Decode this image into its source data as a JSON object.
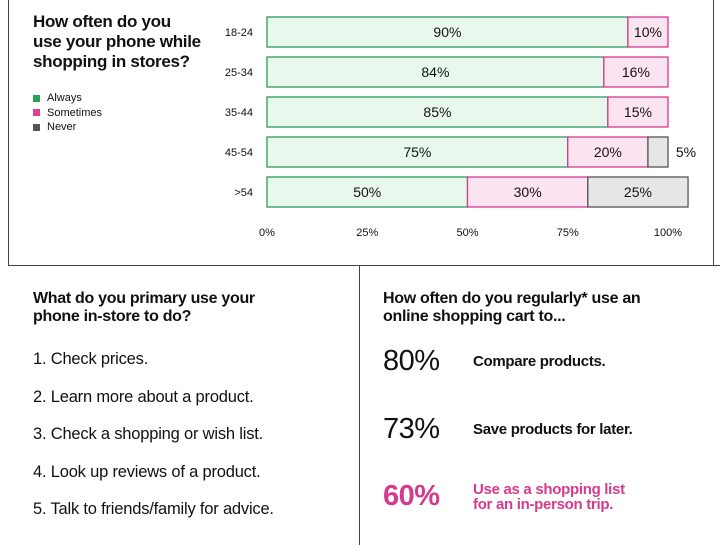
{
  "chart_data": {
    "type": "bar",
    "orientation": "horizontal",
    "stacked": true,
    "title": "How often do you use your phone while shopping in stores?",
    "categories": [
      "18-24",
      "25-34",
      "35-44",
      "45-54",
      ">54"
    ],
    "series": [
      {
        "name": "Always",
        "values": [
          90,
          84,
          85,
          75,
          50
        ],
        "labels": [
          "90%",
          "84%",
          "85%",
          "75%",
          "50%"
        ],
        "fill": "#e8f8ec",
        "stroke": "#2e9a5c",
        "swatch": "#2ea055"
      },
      {
        "name": "Sometimes",
        "values": [
          10,
          16,
          15,
          20,
          30
        ],
        "labels": [
          "10%",
          "16%",
          "15%",
          "20%",
          "30%"
        ],
        "fill": "#fbe3ef",
        "stroke": "#d63a8e",
        "swatch": "#e0408f"
      },
      {
        "name": "Never",
        "values": [
          0,
          0,
          0,
          5,
          25
        ],
        "labels": [
          "",
          "",
          "",
          "5%",
          "25%"
        ],
        "fill": "#e6e6e6",
        "stroke": "#555555",
        "swatch": "#555555"
      }
    ],
    "xticks": [
      "0%",
      "25%",
      "50%",
      "75%",
      "100%"
    ],
    "xlim": [
      0,
      100
    ],
    "legend_position": "left"
  },
  "usage": {
    "title": "What do you primary use your phone in-store to do?",
    "items": [
      "1.  Check prices.",
      "2. Learn more about a product.",
      "3. Check a shopping or wish list.",
      "4. Look up reviews of a product.",
      "5. Talk to friends/family for advice."
    ]
  },
  "cart": {
    "title": "How often do you regularly* use an online shopping cart to...",
    "stats": [
      {
        "pct": "80%",
        "text": "Compare products.",
        "highlight": false
      },
      {
        "pct": "73%",
        "text": "Save products for later.",
        "highlight": false
      },
      {
        "pct": "60%",
        "text": "Use as a shopping list for an in-person trip.",
        "highlight": true
      }
    ]
  }
}
